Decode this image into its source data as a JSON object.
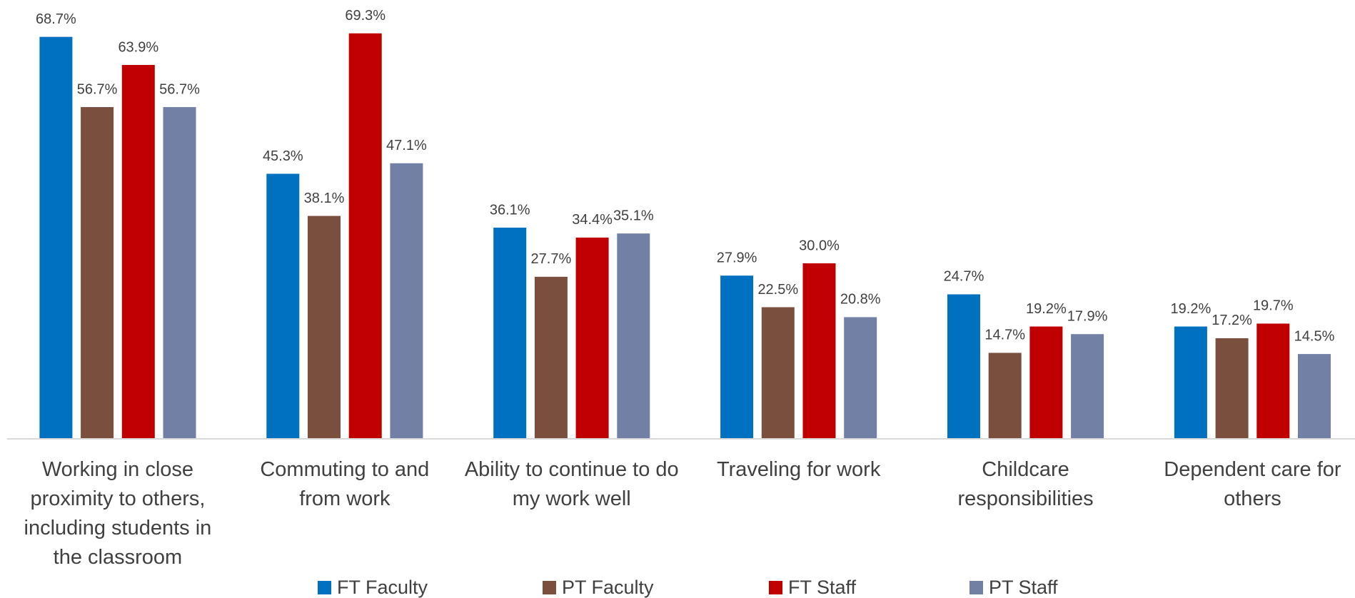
{
  "chart_data": {
    "type": "bar",
    "categories": [
      "Working in close proximity to others, including students in the classroom",
      "Commuting to and from work",
      "Ability to continue to do my work well",
      "Traveling for work",
      "Childcare responsibilities",
      "Dependent care for others"
    ],
    "series": [
      {
        "name": "FT Faculty",
        "color": "#0070c0",
        "values": [
          68.7,
          45.3,
          36.1,
          27.9,
          24.7,
          19.2
        ],
        "value_labels": [
          "68.7%",
          "45.3%",
          "36.1%",
          "27.9%",
          "24.7%",
          "19.2%"
        ]
      },
      {
        "name": "PT Faculty",
        "color": "#7b4f3e",
        "values": [
          56.7,
          38.1,
          27.7,
          22.5,
          14.7,
          17.2
        ],
        "value_labels": [
          "56.7%",
          "38.1%",
          "27.7%",
          "22.5%",
          "14.7%",
          "17.2%"
        ]
      },
      {
        "name": "FT Staff",
        "color": "#c00000",
        "values": [
          63.9,
          69.3,
          34.4,
          30.0,
          19.2,
          19.7
        ],
        "value_labels": [
          "63.9%",
          "69.3%",
          "34.4%",
          "30.0%",
          "19.2%",
          "19.7%"
        ]
      },
      {
        "name": "PT Staff",
        "color": "#7380a5",
        "values": [
          56.7,
          47.1,
          35.1,
          20.8,
          17.9,
          14.5
        ],
        "value_labels": [
          "56.7%",
          "47.1%",
          "35.1%",
          "20.8%",
          "17.9%",
          "14.5%"
        ]
      }
    ],
    "ylim": [
      0,
      75
    ],
    "legend": "bottom"
  }
}
